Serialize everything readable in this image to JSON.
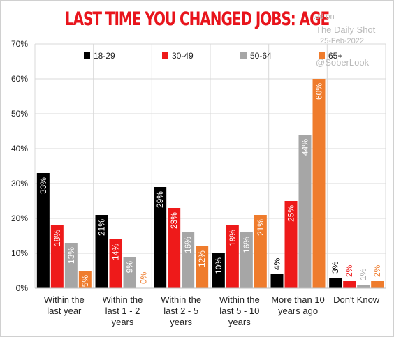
{
  "watermark": {
    "line1": "ted on",
    "line2": "The Daily Shot",
    "line3": "25-Feb-2022",
    "line4": "@SoberLook"
  },
  "colors": {
    "18-29": "#000000",
    "30-49": "#ee1a1a",
    "50-64": "#a6a6a6",
    "65+": "#ef7c2d",
    "text": "#222222",
    "grid": "#d9d9d9"
  },
  "chart_data": {
    "type": "bar",
    "title": "LAST TIME YOU CHANGED JOBS: AGE",
    "categories": [
      [
        "Within the",
        "last year"
      ],
      [
        "Within the",
        "last 1 - 2",
        "years"
      ],
      [
        "Within the",
        "last 2 - 5",
        "years"
      ],
      [
        "Within the",
        "last 5 - 10",
        "years"
      ],
      [
        "More than 10",
        "years ago"
      ],
      [
        "Don't Know"
      ]
    ],
    "series": [
      {
        "name": "18-29",
        "values": [
          33,
          21,
          29,
          10,
          4,
          3
        ]
      },
      {
        "name": "30-49",
        "values": [
          18,
          14,
          23,
          18,
          25,
          2
        ]
      },
      {
        "name": "50-64",
        "values": [
          13,
          9,
          16,
          16,
          44,
          1
        ]
      },
      {
        "name": "65+",
        "values": [
          5,
          0,
          12,
          21,
          60,
          2
        ]
      }
    ],
    "ylim": [
      0,
      70
    ],
    "yticks": [
      "0%",
      "10%",
      "20%",
      "30%",
      "40%",
      "50%",
      "60%",
      "70%"
    ],
    "value_suffix": "%",
    "grid": true,
    "legend_position": "top"
  }
}
